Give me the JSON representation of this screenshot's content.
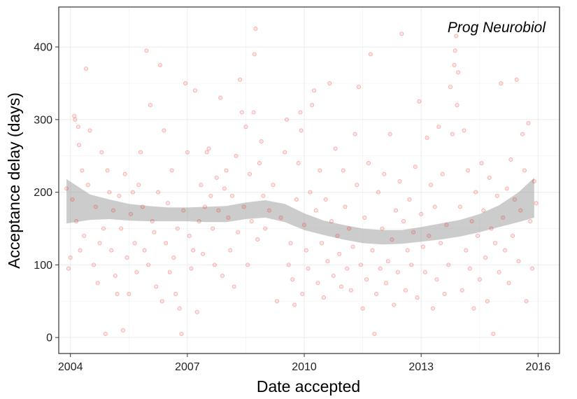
{
  "chart_data": {
    "type": "scatter",
    "title": "",
    "annotation": "Prog Neurobiol",
    "xlabel": "Date accepted",
    "ylabel": "Acceptance delay (days)",
    "xlim": [
      2003.7,
      2016.55
    ],
    "ylim": [
      -22,
      455
    ],
    "x_ticks": [
      2004,
      2007,
      2010,
      2013,
      2016
    ],
    "y_ticks": [
      0,
      100,
      200,
      300,
      400
    ],
    "grid": true,
    "legend": "none",
    "colors": {
      "points": "#e8312d",
      "band": "#999999",
      "panel_border": "#333333",
      "grid": "#ebebeb"
    },
    "smooth_band": [
      {
        "x": 2003.9,
        "low": 157,
        "high": 218
      },
      {
        "x": 2004.5,
        "low": 162,
        "high": 197
      },
      {
        "x": 2005.0,
        "low": 163,
        "high": 190
      },
      {
        "x": 2005.5,
        "low": 161,
        "high": 184
      },
      {
        "x": 2006.0,
        "low": 160,
        "high": 181
      },
      {
        "x": 2006.5,
        "low": 160,
        "high": 179
      },
      {
        "x": 2007.0,
        "low": 160,
        "high": 179
      },
      {
        "x": 2007.5,
        "low": 159,
        "high": 180
      },
      {
        "x": 2008.0,
        "low": 159,
        "high": 181
      },
      {
        "x": 2008.5,
        "low": 163,
        "high": 186
      },
      {
        "x": 2009.0,
        "low": 165,
        "high": 189
      },
      {
        "x": 2009.5,
        "low": 159,
        "high": 184
      },
      {
        "x": 2010.0,
        "low": 148,
        "high": 171
      },
      {
        "x": 2010.5,
        "low": 141,
        "high": 161
      },
      {
        "x": 2011.0,
        "low": 135,
        "high": 155
      },
      {
        "x": 2011.5,
        "low": 130,
        "high": 150
      },
      {
        "x": 2012.0,
        "low": 128,
        "high": 148
      },
      {
        "x": 2012.5,
        "low": 129,
        "high": 148
      },
      {
        "x": 2013.0,
        "low": 132,
        "high": 152
      },
      {
        "x": 2013.5,
        "low": 135,
        "high": 157
      },
      {
        "x": 2014.0,
        "low": 139,
        "high": 162
      },
      {
        "x": 2014.5,
        "low": 145,
        "high": 170
      },
      {
        "x": 2015.0,
        "low": 152,
        "high": 182
      },
      {
        "x": 2015.5,
        "low": 159,
        "high": 200
      },
      {
        "x": 2015.9,
        "low": 165,
        "high": 220
      }
    ],
    "points": [
      {
        "x": 2003.9,
        "y": 205
      },
      {
        "x": 2003.95,
        "y": 95
      },
      {
        "x": 2004.0,
        "y": 110
      },
      {
        "x": 2004.05,
        "y": 190
      },
      {
        "x": 2004.1,
        "y": 305
      },
      {
        "x": 2004.12,
        "y": 300
      },
      {
        "x": 2004.15,
        "y": 160
      },
      {
        "x": 2004.2,
        "y": 290
      },
      {
        "x": 2004.22,
        "y": 265
      },
      {
        "x": 2004.25,
        "y": 120
      },
      {
        "x": 2004.3,
        "y": 230
      },
      {
        "x": 2004.35,
        "y": 140
      },
      {
        "x": 2004.4,
        "y": 370
      },
      {
        "x": 2004.45,
        "y": 210
      },
      {
        "x": 2004.5,
        "y": 285
      },
      {
        "x": 2004.6,
        "y": 100
      },
      {
        "x": 2004.65,
        "y": 180
      },
      {
        "x": 2004.7,
        "y": 75
      },
      {
        "x": 2004.75,
        "y": 130
      },
      {
        "x": 2004.8,
        "y": 255
      },
      {
        "x": 2004.85,
        "y": 150
      },
      {
        "x": 2004.9,
        "y": 5
      },
      {
        "x": 2004.95,
        "y": 230
      },
      {
        "x": 2005.0,
        "y": 200
      },
      {
        "x": 2005.05,
        "y": 120
      },
      {
        "x": 2005.1,
        "y": 175
      },
      {
        "x": 2005.15,
        "y": 85
      },
      {
        "x": 2005.2,
        "y": 60
      },
      {
        "x": 2005.25,
        "y": 195
      },
      {
        "x": 2005.3,
        "y": 150
      },
      {
        "x": 2005.35,
        "y": 10
      },
      {
        "x": 2005.4,
        "y": 225
      },
      {
        "x": 2005.45,
        "y": 110
      },
      {
        "x": 2005.5,
        "y": 60
      },
      {
        "x": 2005.55,
        "y": 170
      },
      {
        "x": 2005.6,
        "y": 200
      },
      {
        "x": 2005.65,
        "y": 130
      },
      {
        "x": 2005.7,
        "y": 90
      },
      {
        "x": 2005.75,
        "y": 210
      },
      {
        "x": 2005.8,
        "y": 255
      },
      {
        "x": 2005.85,
        "y": 180
      },
      {
        "x": 2005.9,
        "y": 120
      },
      {
        "x": 2005.95,
        "y": 395
      },
      {
        "x": 2006.0,
        "y": 100
      },
      {
        "x": 2006.05,
        "y": 320
      },
      {
        "x": 2006.1,
        "y": 160
      },
      {
        "x": 2006.15,
        "y": 145
      },
      {
        "x": 2006.2,
        "y": 70
      },
      {
        "x": 2006.25,
        "y": 200
      },
      {
        "x": 2006.3,
        "y": 375
      },
      {
        "x": 2006.35,
        "y": 50
      },
      {
        "x": 2006.4,
        "y": 285
      },
      {
        "x": 2006.45,
        "y": 130
      },
      {
        "x": 2006.5,
        "y": 185
      },
      {
        "x": 2006.55,
        "y": 90
      },
      {
        "x": 2006.6,
        "y": 230
      },
      {
        "x": 2006.65,
        "y": 110
      },
      {
        "x": 2006.7,
        "y": 60
      },
      {
        "x": 2006.75,
        "y": 150
      },
      {
        "x": 2006.8,
        "y": 40
      },
      {
        "x": 2006.85,
        "y": 5
      },
      {
        "x": 2006.9,
        "y": 175
      },
      {
        "x": 2006.95,
        "y": 350
      },
      {
        "x": 2007.0,
        "y": 255
      },
      {
        "x": 2007.05,
        "y": 140
      },
      {
        "x": 2007.1,
        "y": 95
      },
      {
        "x": 2007.15,
        "y": 120
      },
      {
        "x": 2007.2,
        "y": 340
      },
      {
        "x": 2007.25,
        "y": 35
      },
      {
        "x": 2007.3,
        "y": 160
      },
      {
        "x": 2007.35,
        "y": 210
      },
      {
        "x": 2007.4,
        "y": 115
      },
      {
        "x": 2007.45,
        "y": 180
      },
      {
        "x": 2007.5,
        "y": 255
      },
      {
        "x": 2007.55,
        "y": 260
      },
      {
        "x": 2007.6,
        "y": 195
      },
      {
        "x": 2007.65,
        "y": 150
      },
      {
        "x": 2007.7,
        "y": 100
      },
      {
        "x": 2007.75,
        "y": 220
      },
      {
        "x": 2007.8,
        "y": 175
      },
      {
        "x": 2007.85,
        "y": 330
      },
      {
        "x": 2007.9,
        "y": 85
      },
      {
        "x": 2007.95,
        "y": 205
      },
      {
        "x": 2008.0,
        "y": 230
      },
      {
        "x": 2008.05,
        "y": 165
      },
      {
        "x": 2008.1,
        "y": 120
      },
      {
        "x": 2008.15,
        "y": 195
      },
      {
        "x": 2008.2,
        "y": 70
      },
      {
        "x": 2008.25,
        "y": 250
      },
      {
        "x": 2008.3,
        "y": 145
      },
      {
        "x": 2008.35,
        "y": 355
      },
      {
        "x": 2008.4,
        "y": 310
      },
      {
        "x": 2008.45,
        "y": 180
      },
      {
        "x": 2008.5,
        "y": 290
      },
      {
        "x": 2008.55,
        "y": 100
      },
      {
        "x": 2008.6,
        "y": 225
      },
      {
        "x": 2008.65,
        "y": 160
      },
      {
        "x": 2008.7,
        "y": 310
      },
      {
        "x": 2008.72,
        "y": 390
      },
      {
        "x": 2008.75,
        "y": 425
      },
      {
        "x": 2008.8,
        "y": 135
      },
      {
        "x": 2008.85,
        "y": 240
      },
      {
        "x": 2008.9,
        "y": 270
      },
      {
        "x": 2008.95,
        "y": 195
      },
      {
        "x": 2009.0,
        "y": 150
      },
      {
        "x": 2009.1,
        "y": 175
      },
      {
        "x": 2009.2,
        "y": 210
      },
      {
        "x": 2009.3,
        "y": 50
      },
      {
        "x": 2009.4,
        "y": 165
      },
      {
        "x": 2009.5,
        "y": 255
      },
      {
        "x": 2009.55,
        "y": 300
      },
      {
        "x": 2009.6,
        "y": 100
      },
      {
        "x": 2009.65,
        "y": 130
      },
      {
        "x": 2009.7,
        "y": 80
      },
      {
        "x": 2009.75,
        "y": 45
      },
      {
        "x": 2009.8,
        "y": 190
      },
      {
        "x": 2009.85,
        "y": 240
      },
      {
        "x": 2009.9,
        "y": 310
      },
      {
        "x": 2009.92,
        "y": 285
      },
      {
        "x": 2009.95,
        "y": 60
      },
      {
        "x": 2010.0,
        "y": 155
      },
      {
        "x": 2010.05,
        "y": 120
      },
      {
        "x": 2010.1,
        "y": 95
      },
      {
        "x": 2010.15,
        "y": 200
      },
      {
        "x": 2010.2,
        "y": 320
      },
      {
        "x": 2010.25,
        "y": 340
      },
      {
        "x": 2010.3,
        "y": 175
      },
      {
        "x": 2010.35,
        "y": 75
      },
      {
        "x": 2010.4,
        "y": 230
      },
      {
        "x": 2010.45,
        "y": 130
      },
      {
        "x": 2010.5,
        "y": 55
      },
      {
        "x": 2010.55,
        "y": 190
      },
      {
        "x": 2010.6,
        "y": 105
      },
      {
        "x": 2010.65,
        "y": 350
      },
      {
        "x": 2010.7,
        "y": 160
      },
      {
        "x": 2010.75,
        "y": 85
      },
      {
        "x": 2010.8,
        "y": 260
      },
      {
        "x": 2010.85,
        "y": 140
      },
      {
        "x": 2010.9,
        "y": 115
      },
      {
        "x": 2010.95,
        "y": 70
      },
      {
        "x": 2011.0,
        "y": 230
      },
      {
        "x": 2011.05,
        "y": 180
      },
      {
        "x": 2011.1,
        "y": 95
      },
      {
        "x": 2011.15,
        "y": 150
      },
      {
        "x": 2011.2,
        "y": 65
      },
      {
        "x": 2011.25,
        "y": 125
      },
      {
        "x": 2011.3,
        "y": 280
      },
      {
        "x": 2011.35,
        "y": 210
      },
      {
        "x": 2011.4,
        "y": 345
      },
      {
        "x": 2011.45,
        "y": 100
      },
      {
        "x": 2011.5,
        "y": 40
      },
      {
        "x": 2011.55,
        "y": 165
      },
      {
        "x": 2011.6,
        "y": 80
      },
      {
        "x": 2011.65,
        "y": 240
      },
      {
        "x": 2011.7,
        "y": 390
      },
      {
        "x": 2011.75,
        "y": 120
      },
      {
        "x": 2011.8,
        "y": 5
      },
      {
        "x": 2011.85,
        "y": 60
      },
      {
        "x": 2011.9,
        "y": 200
      },
      {
        "x": 2011.95,
        "y": 95
      },
      {
        "x": 2012.0,
        "y": 150
      },
      {
        "x": 2012.05,
        "y": 225
      },
      {
        "x": 2012.1,
        "y": 75
      },
      {
        "x": 2012.15,
        "y": 105
      },
      {
        "x": 2012.2,
        "y": 280
      },
      {
        "x": 2012.25,
        "y": 135
      },
      {
        "x": 2012.3,
        "y": 45
      },
      {
        "x": 2012.35,
        "y": 175
      },
      {
        "x": 2012.4,
        "y": 90
      },
      {
        "x": 2012.45,
        "y": 215
      },
      {
        "x": 2012.5,
        "y": 418
      },
      {
        "x": 2012.55,
        "y": 160
      },
      {
        "x": 2012.6,
        "y": 65
      },
      {
        "x": 2012.65,
        "y": 120
      },
      {
        "x": 2012.7,
        "y": 190
      },
      {
        "x": 2012.75,
        "y": 100
      },
      {
        "x": 2012.8,
        "y": 145
      },
      {
        "x": 2012.85,
        "y": 235
      },
      {
        "x": 2012.9,
        "y": 55
      },
      {
        "x": 2012.95,
        "y": 325
      },
      {
        "x": 2013.0,
        "y": 170
      },
      {
        "x": 2013.05,
        "y": 125
      },
      {
        "x": 2013.1,
        "y": 90
      },
      {
        "x": 2013.15,
        "y": 275
      },
      {
        "x": 2013.2,
        "y": 140
      },
      {
        "x": 2013.25,
        "y": 210
      },
      {
        "x": 2013.3,
        "y": 40
      },
      {
        "x": 2013.35,
        "y": 180
      },
      {
        "x": 2013.4,
        "y": 80
      },
      {
        "x": 2013.45,
        "y": 290
      },
      {
        "x": 2013.5,
        "y": 130
      },
      {
        "x": 2013.55,
        "y": 225
      },
      {
        "x": 2013.6,
        "y": 60
      },
      {
        "x": 2013.65,
        "y": 155
      },
      {
        "x": 2013.7,
        "y": 100
      },
      {
        "x": 2013.75,
        "y": 345
      },
      {
        "x": 2013.8,
        "y": 280
      },
      {
        "x": 2013.85,
        "y": 375
      },
      {
        "x": 2013.87,
        "y": 395
      },
      {
        "x": 2013.9,
        "y": 415
      },
      {
        "x": 2013.92,
        "y": 320
      },
      {
        "x": 2013.95,
        "y": 365
      },
      {
        "x": 2014.0,
        "y": 180
      },
      {
        "x": 2014.05,
        "y": 65
      },
      {
        "x": 2014.1,
        "y": 285
      },
      {
        "x": 2014.15,
        "y": 120
      },
      {
        "x": 2014.2,
        "y": 230
      },
      {
        "x": 2014.25,
        "y": 95
      },
      {
        "x": 2014.3,
        "y": 160
      },
      {
        "x": 2014.35,
        "y": 40
      },
      {
        "x": 2014.4,
        "y": 200
      },
      {
        "x": 2014.45,
        "y": 140
      },
      {
        "x": 2014.5,
        "y": 80
      },
      {
        "x": 2014.55,
        "y": 240
      },
      {
        "x": 2014.6,
        "y": 175
      },
      {
        "x": 2014.65,
        "y": 110
      },
      {
        "x": 2014.7,
        "y": 50
      },
      {
        "x": 2014.75,
        "y": 220
      },
      {
        "x": 2014.8,
        "y": 150
      },
      {
        "x": 2014.85,
        "y": 5
      },
      {
        "x": 2014.9,
        "y": 130
      },
      {
        "x": 2014.95,
        "y": 195
      },
      {
        "x": 2015.0,
        "y": 90
      },
      {
        "x": 2015.05,
        "y": 350
      },
      {
        "x": 2015.1,
        "y": 165
      },
      {
        "x": 2015.15,
        "y": 120
      },
      {
        "x": 2015.2,
        "y": 205
      },
      {
        "x": 2015.25,
        "y": 75
      },
      {
        "x": 2015.3,
        "y": 245
      },
      {
        "x": 2015.35,
        "y": 140
      },
      {
        "x": 2015.4,
        "y": 190
      },
      {
        "x": 2015.45,
        "y": 355
      },
      {
        "x": 2015.5,
        "y": 105
      },
      {
        "x": 2015.55,
        "y": 175
      },
      {
        "x": 2015.6,
        "y": 280
      },
      {
        "x": 2015.65,
        "y": 230
      },
      {
        "x": 2015.7,
        "y": 50
      },
      {
        "x": 2015.75,
        "y": 295
      },
      {
        "x": 2015.8,
        "y": 160
      },
      {
        "x": 2015.85,
        "y": 95
      },
      {
        "x": 2015.9,
        "y": 215
      },
      {
        "x": 2015.95,
        "y": 185
      }
    ]
  }
}
